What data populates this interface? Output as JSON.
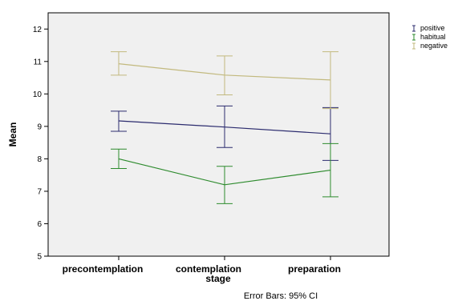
{
  "chart_data": {
    "type": "line",
    "xlabel": "stage",
    "ylabel": "Mean",
    "categories": [
      "precontemplation",
      "contemplation",
      "preparation"
    ],
    "ylim": [
      5,
      12.5
    ],
    "yticks": [
      "5",
      "6",
      "7",
      "8",
      "9",
      "10",
      "11",
      "12"
    ],
    "grid": false,
    "legend_position": "top-right",
    "footnote": "Error Bars: 95% CI",
    "series": [
      {
        "name": "positive",
        "color": "#2b2b6e",
        "values": [
          9.17,
          8.98,
          8.77
        ],
        "ci_low": [
          8.85,
          8.35,
          7.95
        ],
        "ci_high": [
          9.47,
          9.63,
          9.58
        ]
      },
      {
        "name": "habitual",
        "color": "#2e8b2e",
        "values": [
          8.0,
          7.2,
          7.65
        ],
        "ci_low": [
          7.7,
          6.62,
          6.83
        ],
        "ci_high": [
          8.3,
          7.77,
          8.47
        ]
      },
      {
        "name": "negative",
        "color": "#c2b97e",
        "values": [
          10.93,
          10.58,
          10.43
        ],
        "ci_low": [
          10.58,
          9.97,
          9.55
        ],
        "ci_high": [
          11.3,
          11.17,
          11.3
        ]
      }
    ]
  }
}
